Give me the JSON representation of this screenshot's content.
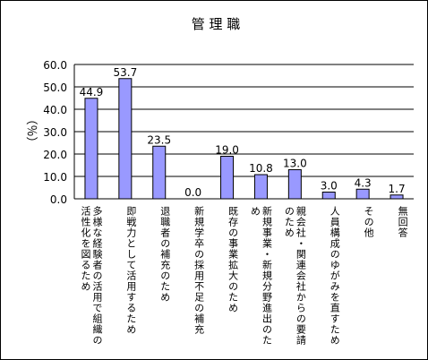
{
  "chart_data": {
    "type": "bar",
    "title": "管 理 職",
    "ylabel": "（％）",
    "ylim": [
      0,
      60
    ],
    "yticks": [
      "0.0",
      "10.0",
      "20.0",
      "30.0",
      "40.0",
      "50.0",
      "60.0"
    ],
    "grid": true,
    "bar_color": "#9999ff",
    "categories": [
      "多様な経験者の活用で組織の活性化を図るため",
      "即戦力として活用するため",
      "退職者の補充のため",
      "新規学卒の採用不足の補充",
      "既存の事業拡大のため",
      "新規事業・新規分野進出のため",
      "親会社・関連会社からの要請のため",
      "人員構成のゆがみを直すため",
      "その他",
      "無回答"
    ],
    "values": [
      44.9,
      53.7,
      23.5,
      0.0,
      19.0,
      10.8,
      13.0,
      3.0,
      4.3,
      1.7
    ],
    "value_labels": [
      "44.9",
      "53.7",
      "23.5",
      "0.0",
      "19.0",
      "10.8",
      "13.0",
      "3.0",
      "4.3",
      "1.7"
    ]
  }
}
